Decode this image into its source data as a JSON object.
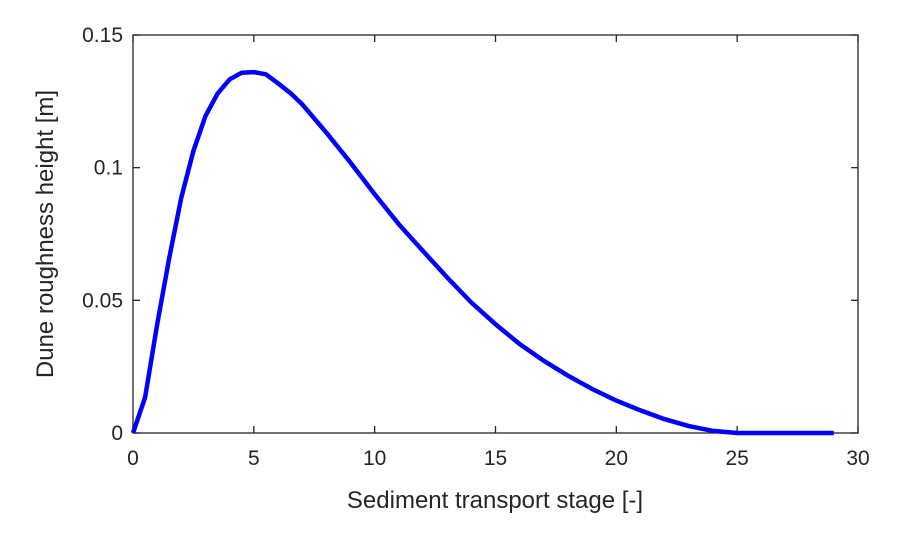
{
  "chart_data": {
    "type": "line",
    "title": "",
    "xlabel": "Sediment transport stage [-]",
    "ylabel": "Dune roughness height [m]",
    "xlim": [
      0,
      30
    ],
    "ylim": [
      0,
      0.15
    ],
    "xticks": [
      "0",
      "5",
      "10",
      "15",
      "20",
      "25",
      "30"
    ],
    "yticks": [
      "0",
      "0.05",
      "0.1",
      "0.15"
    ],
    "grid": false,
    "line_color": "#0000ff",
    "series": [
      {
        "x": [
          0,
          0.5,
          1,
          1.5,
          2,
          2.5,
          3,
          3.5,
          4,
          4.5,
          5,
          5.5,
          6,
          6.5,
          7,
          8,
          9,
          10,
          11,
          12,
          13,
          14,
          15,
          16,
          17,
          18,
          19,
          20,
          21,
          22,
          23,
          24,
          25,
          26,
          27,
          28,
          29
        ],
        "y": [
          0,
          0.0134,
          0.041,
          0.0661,
          0.0887,
          0.1063,
          0.1195,
          0.1279,
          0.1333,
          0.1358,
          0.136,
          0.1352,
          0.1318,
          0.1282,
          0.1239,
          0.1132,
          0.1019,
          0.09,
          0.0787,
          0.0686,
          0.0586,
          0.0492,
          0.041,
          0.0335,
          0.0272,
          0.0216,
          0.0166,
          0.0122,
          0.0085,
          0.0052,
          0.0026,
          0.0008,
          0,
          0,
          0,
          0,
          0
        ]
      }
    ]
  }
}
